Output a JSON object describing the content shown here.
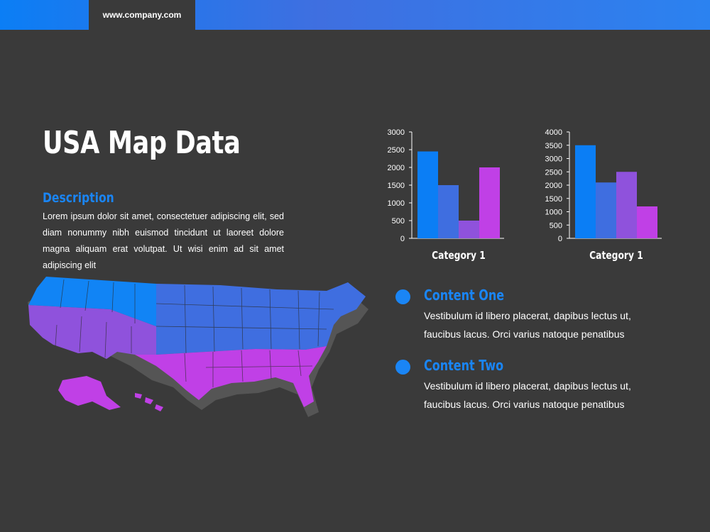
{
  "header": {
    "url": "www.company.com"
  },
  "title": "USA Map Data",
  "description": {
    "heading": "Description",
    "text": "Lorem ipsum dolor sit amet, consectetuer adipiscing elit, sed diam nonummy nibh euismod tincidunt ut laoreet dolore magna aliquam erat volutpat. Ut wisi enim ad sit amet adipiscing elit"
  },
  "colors": {
    "background": "#3a3a3a",
    "accent": "#1a85f5",
    "series": [
      "#0b7ef5",
      "#3f6ee0",
      "#8f52dc",
      "#c040e6"
    ]
  },
  "map": {
    "regions": [
      {
        "name": "north",
        "color": "#1184f5"
      },
      {
        "name": "central",
        "color": "#3f6ee0"
      },
      {
        "name": "west",
        "color": "#8f52dc"
      },
      {
        "name": "south",
        "color": "#c040e6"
      }
    ]
  },
  "content": [
    {
      "title": "Content One",
      "text": "Vestibulum id libero placerat, dapibus lectus ut, faucibus lacus. Orci varius natoque penatibus"
    },
    {
      "title": "Content Two",
      "text": "Vestibulum id libero placerat, dapibus lectus ut, faucibus lacus. Orci varius natoque penatibus"
    }
  ],
  "chart_data": [
    {
      "type": "bar",
      "categories": [
        "Category 1"
      ],
      "series": [
        {
          "values": [
            2450
          ]
        },
        {
          "values": [
            1500
          ]
        },
        {
          "values": [
            500
          ]
        },
        {
          "values": [
            2000
          ]
        }
      ],
      "ylim": [
        0,
        3000
      ],
      "yticks": [
        0,
        500,
        1000,
        1500,
        2000,
        2500,
        3000
      ],
      "grid": false
    },
    {
      "type": "bar",
      "categories": [
        "Category 1"
      ],
      "series": [
        {
          "values": [
            3500
          ]
        },
        {
          "values": [
            2100
          ]
        },
        {
          "values": [
            2500
          ]
        },
        {
          "values": [
            1200
          ]
        }
      ],
      "ylim": [
        0,
        4000
      ],
      "yticks": [
        0,
        500,
        1000,
        1500,
        2000,
        2500,
        3000,
        3500,
        4000
      ],
      "grid": false
    }
  ]
}
